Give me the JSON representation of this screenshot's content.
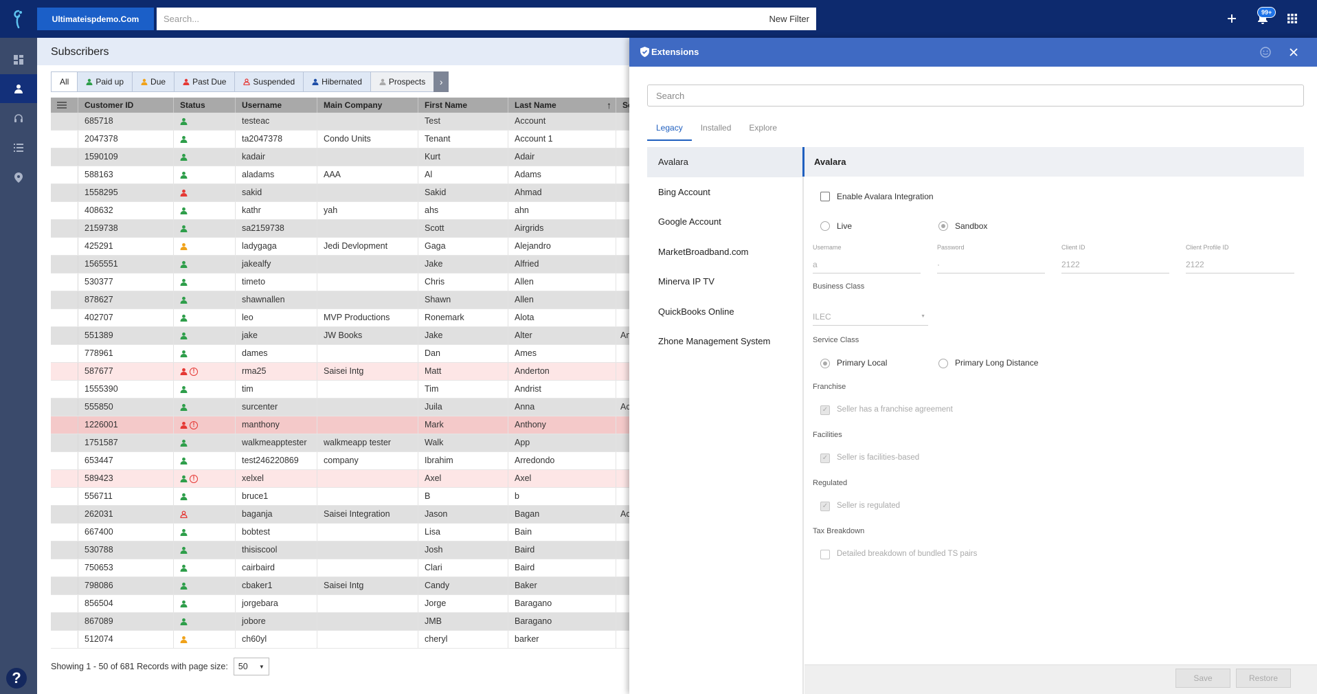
{
  "topbar": {
    "domain": "Ultimateispdemo.Com",
    "search_placeholder": "Search...",
    "new_filter": "New Filter",
    "notifications_badge": "99+"
  },
  "subscribers": {
    "title": "Subscribers",
    "filters": [
      "All",
      "Paid up",
      "Due",
      "Past Due",
      "Suspended",
      "Hibernated",
      "Prospects"
    ],
    "columns": [
      "Customer ID",
      "Status",
      "Username",
      "Main Company",
      "First Name",
      "Last Name",
      "So"
    ],
    "rows": [
      {
        "id": "685718",
        "status": "green",
        "warn": false,
        "username": "testeac",
        "company": "",
        "first": "Test",
        "last": "Account",
        "so": ""
      },
      {
        "id": "2047378",
        "status": "green",
        "warn": false,
        "username": "ta2047378",
        "company": "Condo Units",
        "first": "Tenant",
        "last": "Account 1",
        "so": ""
      },
      {
        "id": "1590109",
        "status": "green",
        "warn": false,
        "username": "kadair",
        "company": "",
        "first": "Kurt",
        "last": "Adair",
        "so": ""
      },
      {
        "id": "588163",
        "status": "green",
        "warn": false,
        "username": "aladams",
        "company": "AAA",
        "first": "Al",
        "last": "Adams",
        "so": ""
      },
      {
        "id": "1558295",
        "status": "red",
        "warn": false,
        "username": "sakid",
        "company": "",
        "first": "Sakid",
        "last": "Ahmad",
        "so": ""
      },
      {
        "id": "408632",
        "status": "green",
        "warn": false,
        "username": "kathr",
        "company": "yah",
        "first": "ahs",
        "last": "ahn",
        "so": ""
      },
      {
        "id": "2159738",
        "status": "green",
        "warn": false,
        "username": "sa2159738",
        "company": "",
        "first": "Scott",
        "last": "Airgrids",
        "so": ""
      },
      {
        "id": "425291",
        "status": "orange",
        "warn": false,
        "username": "ladygaga",
        "company": "Jedi Devlopment",
        "first": "Gaga",
        "last": "Alejandro",
        "so": ""
      },
      {
        "id": "1565551",
        "status": "green",
        "warn": false,
        "username": "jakealfy",
        "company": "",
        "first": "Jake",
        "last": "Alfried",
        "so": ""
      },
      {
        "id": "530377",
        "status": "green",
        "warn": false,
        "username": "timeto",
        "company": "",
        "first": "Chris",
        "last": "Allen",
        "so": ""
      },
      {
        "id": "878627",
        "status": "green",
        "warn": false,
        "username": "shawnallen",
        "company": "",
        "first": "Shawn",
        "last": "Allen",
        "so": ""
      },
      {
        "id": "402707",
        "status": "green",
        "warn": false,
        "username": "leo",
        "company": "MVP Productions",
        "first": "Ronemark",
        "last": "Alota",
        "so": ""
      },
      {
        "id": "551389",
        "status": "green",
        "warn": false,
        "username": "jake",
        "company": "JW Books",
        "first": "Jake",
        "last": "Alter",
        "so": "An"
      },
      {
        "id": "778961",
        "status": "green",
        "warn": false,
        "username": "dames",
        "company": "",
        "first": "Dan",
        "last": "Ames",
        "so": ""
      },
      {
        "id": "587677",
        "status": "red",
        "warn": true,
        "username": "rma25",
        "company": "Saisei Intg",
        "first": "Matt",
        "last": "Anderton",
        "so": ""
      },
      {
        "id": "1555390",
        "status": "green",
        "warn": false,
        "username": "tim",
        "company": "",
        "first": "Tim",
        "last": "Andrist",
        "so": ""
      },
      {
        "id": "555850",
        "status": "green",
        "warn": false,
        "username": "surcenter",
        "company": "",
        "first": "Juila",
        "last": "Anna",
        "so": "Ac"
      },
      {
        "id": "1226001",
        "status": "red",
        "warn": true,
        "username": "manthony",
        "company": "",
        "first": "Mark",
        "last": "Anthony",
        "so": ""
      },
      {
        "id": "1751587",
        "status": "green",
        "warn": false,
        "username": "walkmeapptester",
        "company": "walkmeapp tester",
        "first": "Walk",
        "last": "App",
        "so": ""
      },
      {
        "id": "653447",
        "status": "green",
        "warn": false,
        "username": "test246220869",
        "company": "company",
        "first": "Ibrahim",
        "last": "Arredondo",
        "so": ""
      },
      {
        "id": "589423",
        "status": "green",
        "warn": true,
        "username": "xelxel",
        "company": "",
        "first": "Axel",
        "last": "Axel",
        "so": ""
      },
      {
        "id": "556711",
        "status": "green",
        "warn": false,
        "username": "bruce1",
        "company": "",
        "first": "B",
        "last": "b",
        "so": ""
      },
      {
        "id": "262031",
        "status": "red-outline",
        "warn": false,
        "username": "baganja",
        "company": "Saisei Integration",
        "first": "Jason",
        "last": "Bagan",
        "so": "Ac"
      },
      {
        "id": "667400",
        "status": "green",
        "warn": false,
        "username": "bobtest",
        "company": "",
        "first": "Lisa",
        "last": "Bain",
        "so": ""
      },
      {
        "id": "530788",
        "status": "green",
        "warn": false,
        "username": "thisiscool",
        "company": "",
        "first": "Josh",
        "last": "Baird",
        "so": ""
      },
      {
        "id": "750653",
        "status": "green",
        "warn": false,
        "username": "cairbaird",
        "company": "",
        "first": "Clari",
        "last": "Baird",
        "so": ""
      },
      {
        "id": "798086",
        "status": "green",
        "warn": false,
        "username": "cbaker1",
        "company": "Saisei Intg",
        "first": "Candy",
        "last": "Baker",
        "so": ""
      },
      {
        "id": "856504",
        "status": "green",
        "warn": false,
        "username": "jorgebara",
        "company": "",
        "first": "Jorge",
        "last": "Baragano",
        "so": ""
      },
      {
        "id": "867089",
        "status": "green",
        "warn": false,
        "username": "jobore",
        "company": "",
        "first": "JMB",
        "last": "Baragano",
        "so": ""
      },
      {
        "id": "512074",
        "status": "orange",
        "warn": false,
        "username": "ch60yl",
        "company": "",
        "first": "cheryl",
        "last": "barker",
        "so": ""
      }
    ],
    "pager_text": "Showing 1 - 50 of 681 Records with page size:",
    "page_size": "50"
  },
  "extensions": {
    "title": "Extensions",
    "search_placeholder": "Search",
    "tabs": [
      "Legacy",
      "Installed",
      "Explore"
    ],
    "list": [
      "Avalara",
      "Bing Account",
      "Google Account",
      "MarketBroadband.com",
      "Minerva IP TV",
      "QuickBooks Online",
      "Zhone Management System"
    ],
    "detail": {
      "title": "Avalara",
      "enable_label": "Enable Avalara Integration",
      "live_label": "Live",
      "sandbox_label": "Sandbox",
      "username_label": "Username",
      "username_value": "a",
      "password_label": "Password",
      "password_value": "·",
      "client_id_label": "Client ID",
      "client_id_value": "2122",
      "client_profile_label": "Client Profile ID",
      "client_profile_value": "2122",
      "business_class_label": "Business Class",
      "business_class_value": "ILEC",
      "service_class_label": "Service Class",
      "primary_local": "Primary Local",
      "primary_long": "Primary Long Distance",
      "franchise_label": "Franchise",
      "franchise_check": "Seller has a franchise agreement",
      "facilities_label": "Facilities",
      "facilities_check": "Seller is facilities-based",
      "regulated_label": "Regulated",
      "regulated_check": "Seller is regulated",
      "tax_label": "Tax Breakdown",
      "tax_check": "Detailed breakdown of bundled TS pairs"
    },
    "save": "Save",
    "restore": "Restore"
  },
  "colors": {
    "topbar": "#0d2a6e",
    "accent": "#1f5fbf",
    "status_green": "#2e9e4a",
    "status_red": "#e53935",
    "status_orange": "#f0a21a"
  }
}
